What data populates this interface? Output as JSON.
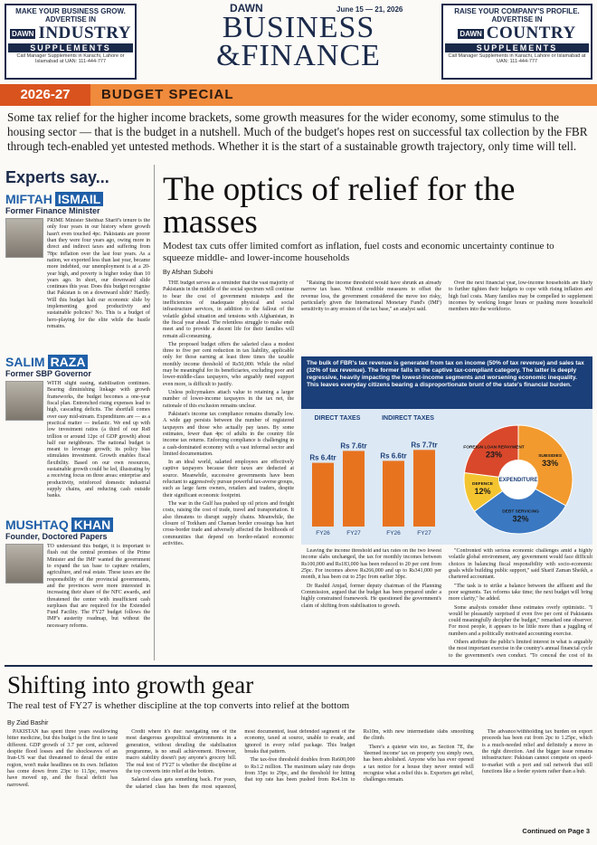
{
  "header": {
    "left_ad": {
      "line1": "MAKE YOUR BUSINESS GROW.",
      "line2": "ADVERTISE IN",
      "brand": "DAWN",
      "title": "INDUSTRY",
      "subtitle": "SUPPLEMENTS",
      "contact": "Call Manager Supplements in Karachi, Lahore or Islamabad at UAN: 111-444-777"
    },
    "masthead": {
      "brand": "DAWN",
      "line1": "BUSINESS",
      "amp": "&",
      "line2": "FINANCE"
    },
    "date": "June 15 — 21, 2026",
    "right_ad": {
      "line1": "RAISE YOUR COMPANY'S PROFILE.",
      "line2": "ADVERTISE IN",
      "brand": "DAWN",
      "title": "COUNTRY",
      "subtitle": "SUPPLEMENTS",
      "contact": "Call Manager Supplements in Karachi, Lahore or Islamabad at UAN: 111-444-777"
    }
  },
  "section": {
    "year": "2026-27",
    "title": "BUDGET SPECIAL"
  },
  "intro": "Some tax relief for the higher income brackets, some growth measures for the wider economy, some stimulus to the housing sector — that is the budget in a nutshell. Much of the budget's hopes rest on successful tax collection by the FBR through tech-enabled yet untested methods. Whether it is the start of a sustainable growth trajectory, only time will tell.",
  "experts": {
    "heading": "Experts say...",
    "items": [
      {
        "first": "MIFTAH",
        "last": "ISMAIL",
        "role": "Former Finance Minister",
        "text": "PRIME Minister Shehbaz Sharif's tenure is the only four years in our history where growth hasn't even touched 4pc. Pakistanis are poorer than they were four years ago, owing more in direct and indirect taxes and suffering from 78pc inflation over the last four years. As a nation, we exported less than last year, became more indebted, our unemployment is at a 20-year high, and poverty is higher today than 10 years ago. In short, our downward slide continues this year. Does this budget recognise that Pakistan is on a downward slide? Hardly. Will this budget halt our economic slide by implementing good productivity and sustainable policies? No. This is a budget of hero-playing for the elite while the hustle remains."
      },
      {
        "first": "SALIM",
        "last": "RAZA",
        "role": "Former SBP Governor",
        "text": "WITH slight easing, stabilisation continues. Bearing diminishing linkage with growth frameworks, the budget becomes a one-year fiscal plan. Entrenched rising expenses lead to high, cascading deficits. The shortfall comes over easy mid-stream. Expenditures are — as a practical matter — inelastic. We end up with low investment ratios (a third of our Rs8 trillion or around 12pc of GDP growth) about half our neighbours. The national budget is meant to leverage growth; its policy bias stimulates investment. Growth enables fiscal flexibility. Based on our own resources, sustainable growth could be led, illustrating by a receiving focus on three areas: enterprise and productivity, reinforced domestic industrial supply chains, and reducing cash outside banks."
      },
      {
        "first": "MUSHTAQ",
        "last": "KHAN",
        "role": "Founder, Doctored Papers",
        "text": "TO understand this budget, it is important to flush out the central promises of the Prime Minister and the IMF wanted the government to expand the tax base to capture retailers, agriculture, and real estate. These taxes are the responsibility of the provincial governments, and the provinces were more interested in increasing their share of the NFC awards, and threatened the center with insufficient cash surpluses that are required for the Extended Fund Facility. The FY27 budget follows the IMF's austerity roadmap, but without the necessary reforms."
      }
    ]
  },
  "main_story": {
    "headline": "The optics of relief for the masses",
    "subhead": "Modest tax cuts offer limited comfort as inflation, fuel costs and economic uncertainty continue to squeeze middle- and lower-income households",
    "byline": "By Afshan Subohi",
    "paragraphs": [
      "THE budget serves as a reminder that the vast majority of Pakistanis in the middle of the social spectrum will continue to bear the cost of government missteps and the inefficiencies of inadequate physical and social infrastructure services, in addition to the fallout of the volatile global situation and tensions with Afghanistan, in the fiscal year ahead. The relentless struggle to make ends meet and to provide a decent life for their families will remain all-consuming.",
      "The proposed budget offers the salaried class a modest three to five per cent reduction in tax liability, applicable only for those earning at least three times the taxable monthly income threshold of Rs50,000. While the relief may be meaningful for its beneficiaries, excluding poor and lower-middle-class taxpayers, who arguably need support even more, is difficult to justify.",
      "Unless policymakers attach value to retaining a larger number of lower-income taxpayers in the tax net, the rationale of this exclusion remains unclear.",
      "Pakistan's income tax compliance remains dismally low. A wide gap persists between the number of registered taxpayers and those who actually pay taxes. By some estimates, fewer than 4pc of adults in the country file income tax returns. Enforcing compliance is challenging in a cash-dominated economy with a vast informal sector and limited documentation.",
      "In an ideal world, salaried employees are effectively captive taxpayers because their taxes are deducted at source. Meanwhile, successive governments have been reluctant to aggressively pursue powerful tax-averse groups, such as large farm owners, retailers and traders, despite their significant economic footprint.",
      "The war in the Gulf has pushed up oil prices and freight costs, raising the cost of trade, travel and transportation. It also threatens to disrupt supply chains. Meanwhile, the closure of Torkham and Chaman border crossings has hurt cross-border trade and adversely affected the livelihoods of communities that depend on border-related economic activities.",
      "\"Raising the income threshold would have shrunk an already narrow tax base. Without credible measures to offset the revenue loss, the government considered the move too risky, particularly given the International Monetary Fund's (IMF) sensitivity to any erosion of the tax base,\" an analyst said.",
      "Dr Rashid Amjad, former deputy chairman of the Planning Commission, argued that the budget has been prepared under a highly constrained framework. He questioned the government's claim of shifting from stabilisation to growth.",
      "Leaving the income threshold and tax rates on the two lowest income slabs unchanged, the tax for monthly incomes between Rs100,000 and Rs183,000 has been reduced to 20 per cent from 25pc. For incomes above Rs266,000 and up to Rs341,000 per month, it has been cut to 25pc from earlier 30pc.",
      "Over the next financial year, low-income households are likely to further tighten their budgets to cope with rising inflation and high fuel costs. Many families may be compelled to supplement incomes by working longer hours or pushing more household members into the workforce.",
      "\"Confronted with serious economic challenges amid a highly volatile global environment, any government would face difficult choices in balancing fiscal responsibility with socio-economic goals while building public support,\" said Sharif Zaman Sheikh, a chartered accountant.",
      "\"The task is to strike a balance between the affluent and the poor segments. Tax reforms take time; the next budget will bring more clarity,\" he added.",
      "Some analysts consider these estimates overly optimistic. \"I would be pleasantly surprised if even five per cent of Pakistanis could meaningfully decipher the budget,\" remarked one observer. For most people, it appears to be little more than a juggling of numbers and a politically motivated accounting exercise.",
      "Others attribute the public's limited interest in what is arguably the most important exercise in the country's annual financial cycle to the government's own conduct. \"To conceal the cost of its inefficiencies and mask policies that disproportionately favour elite segments, budget makers deliberately make the process complex,\" observed a retired civil servant."
    ],
    "pull_quote": "The bulk of FBR's tax revenue is generated from tax on income (50% of tax revenue) and sales tax (32% of tax revenue). The former falls in the captive tax-compliant category. The latter is deeply regressive, heavily impacting the lowest-income segments and worsening economic inequality. This leaves everyday citizens bearing a disproportionate brunt of the state's financial burden."
  },
  "infographic": {
    "direct_taxes": {
      "title": "DIRECT TAXES",
      "categories": [
        "FY26",
        "FY27"
      ],
      "values": [
        6.4,
        7.6
      ],
      "value_labels": [
        "Rs 6.4tr",
        "Rs 7.6tr"
      ],
      "color": "#e8731f"
    },
    "indirect_taxes": {
      "title": "INDIRECT TAXES",
      "categories": [
        "FY26",
        "FY27"
      ],
      "values": [
        6.6,
        7.7
      ],
      "value_labels": [
        "Rs 6.6tr",
        "Rs 7.7tr"
      ],
      "color": "#e8731f"
    },
    "expenditure": {
      "title": "EXPENDITURE",
      "categories": [
        "SUBSIDIES",
        "DEBT SERVICING",
        "DEFENCE",
        "FOREIGN LOAN REPAYMENT"
      ],
      "values": [
        33,
        32,
        12,
        23
      ],
      "value_labels": [
        "33%",
        "32%",
        "12%",
        "23%"
      ],
      "colors": [
        "#f29a2e",
        "#3a78c2",
        "#f4c430",
        "#d9482b"
      ]
    }
  },
  "second_story": {
    "headline": "Shifting into growth gear",
    "subhead": "The real test of FY27 is whether discipline at the top converts into relief at the bottom",
    "byline": "By Ziad Bashir",
    "paragraphs": [
      "PAKISTAN has spent three years swallowing bitter medicine, but this budget is the first to taste different. GDP growth of 3.7 per cent, achieved despite flood losses and the shockwaves of an Iran-US war that threatened to derail the entire region, won't make headlines on its own. Inflation has come down from 23pc to 11.5pc, reserves have moved up, and the fiscal deficit has narrowed.",
      "Credit where it's due: navigating one of the most dangerous geopolitical environments in a generation, without derailing the stabilisation programme, is no small achievement. However, macro stability doesn't pay anyone's grocery bill. The real test of FY27 is whether the discipline at the top converts into relief at the bottom.",
      "Salaried class gets something back. For years, the salaried class has been the most squeezed, most documented, least defended segment of the economy, taxed at source, unable to evade, and ignored in every relief package. This budget breaks that pattern.",
      "The tax-free threshold doubles from Rs600,000 to Rs1.2 million. The maximum salary rate drops from 35pc to 29pc, and the threshold for hitting that top rate has been pushed from Rs4.1m to Rs10m, with new intermediate slabs smoothing the climb.",
      "There's a quieter win too, as Section 7E, the 'deemed income' tax on property you simply own, has been abolished. Anyone who has ever opened a tax notice for a house they never rented will recognise what a relief this is. Exporters get relief, challenges remain.",
      "The advance/withholding tax burden on export proceeds has been cut from 2pc to 1.25pc, which is a much-needed relief and definitely a move in the right direction. And the bigger issue remains infrastructure: Pakistan cannot compete on speed-to-market with a port and rail network that still functions like a feeder system rather than a hub."
    ],
    "continued": "Continued on Page 3"
  }
}
